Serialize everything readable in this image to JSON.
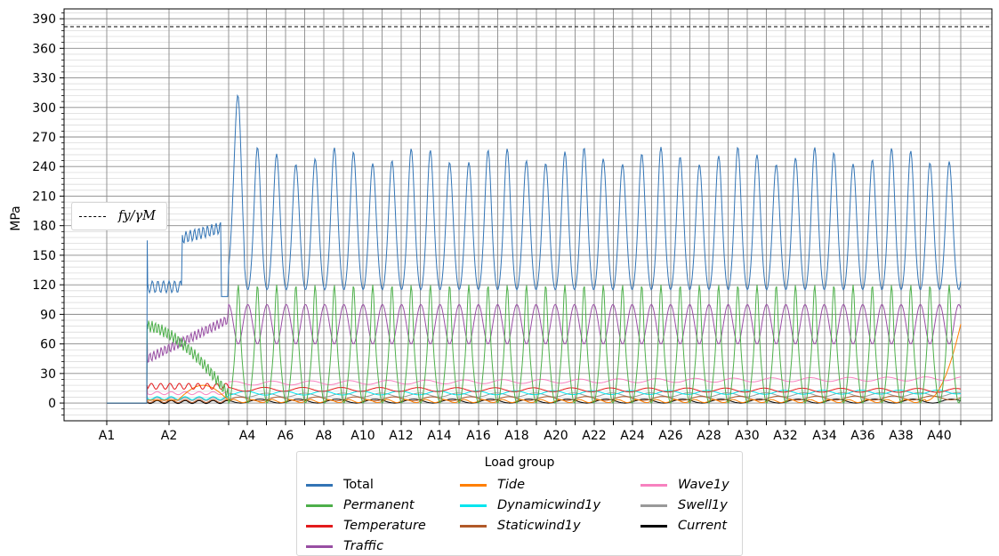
{
  "chart_data": {
    "type": "line",
    "ylabel": "MPa",
    "ylim": [
      -18,
      400
    ],
    "y_ticks": [
      0,
      30,
      60,
      90,
      120,
      150,
      180,
      210,
      240,
      270,
      300,
      330,
      360,
      390
    ],
    "x_labels": [
      "A1",
      "A2",
      "A4",
      "A6",
      "A8",
      "A10",
      "A12",
      "A14",
      "A16",
      "A18",
      "A20",
      "A22",
      "A24",
      "A26",
      "A28",
      "A30",
      "A32",
      "A34",
      "A36",
      "A38",
      "A40"
    ],
    "reference_line": {
      "label": "f_y/γ_M",
      "label_display": "fy/γM",
      "value": 382,
      "style": "dashed",
      "color": "#000000"
    },
    "legend_title": "Load group",
    "series": [
      {
        "name": "Total",
        "color": "#3274b5",
        "italic": false,
        "profile": {
          "initial": 0,
          "onset": 165,
          "mid_low": 118,
          "mid_high": 170,
          "span_trough": 115,
          "span_peak": 200,
          "peak_max": 288,
          "end": 245
        }
      },
      {
        "name": "Permanent",
        "color": "#4daf4a",
        "italic": true,
        "profile": {
          "initial": 0,
          "onset": 80,
          "span_trough": 0,
          "span_peak": 65,
          "peak_max": 120,
          "end": 95
        }
      },
      {
        "name": "Temperature",
        "color": "#e31a1c",
        "italic": true,
        "profile": {
          "initial": 0,
          "onset": 18,
          "span_level": 14,
          "end": 12
        }
      },
      {
        "name": "Traffic",
        "color": "#984ea3",
        "italic": true,
        "profile": {
          "initial": 0,
          "onset": 65,
          "span_trough": 60,
          "span_peak": 100,
          "end": 90
        }
      },
      {
        "name": "Tide",
        "color": "#ff7f00",
        "italic": true,
        "profile": {
          "initial": 0,
          "span_level": 2,
          "end": 80
        }
      },
      {
        "name": "Dynamicwind1y",
        "color": "#00e5ee",
        "italic": true,
        "profile": {
          "initial": 0,
          "span_level": 10,
          "end": 12
        }
      },
      {
        "name": "Staticwind1y",
        "color": "#b15928",
        "italic": true,
        "profile": {
          "initial": 0,
          "span_level": 4,
          "end": 6
        }
      },
      {
        "name": "Wave1y",
        "color": "#f781bf",
        "italic": true,
        "profile": {
          "initial": 0,
          "span_level": 20,
          "end": 28
        }
      },
      {
        "name": "Swell1y",
        "color": "#999999",
        "italic": true,
        "profile": {
          "initial": 0,
          "span_level": 8,
          "end": 9
        }
      },
      {
        "name": "Current",
        "color": "#000000",
        "italic": true,
        "profile": {
          "initial": 0,
          "span_level": 2,
          "end": 2
        }
      }
    ],
    "grid": true,
    "legend_position": "bottom-center, outside",
    "reference_legend_position": "center-left"
  }
}
